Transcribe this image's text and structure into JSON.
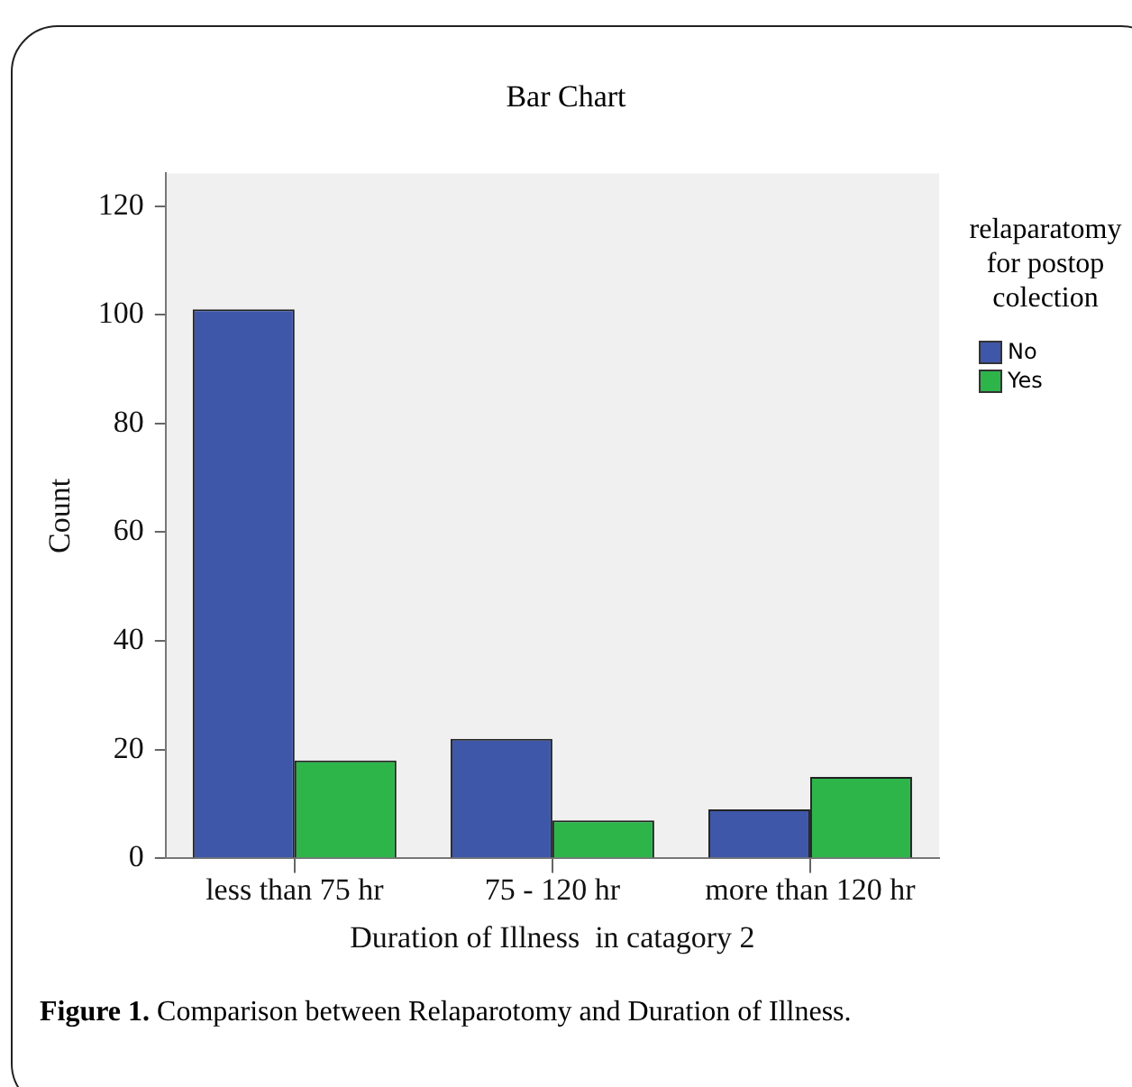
{
  "chart_data": {
    "type": "bar",
    "title": "Bar Chart",
    "xlabel": "Duration of Illness  in catagory 2",
    "ylabel": "Count",
    "legend_title": "relaparatomy for postop colection",
    "categories": [
      "less than 75 hr",
      "75 - 120 hr",
      "more than 120 hr"
    ],
    "series": [
      {
        "name": "No",
        "color": "#3f57a8",
        "values": [
          101,
          22,
          9
        ]
      },
      {
        "name": "Yes",
        "color": "#2db54a",
        "values": [
          18,
          7,
          15
        ]
      }
    ],
    "ylim": [
      0,
      126
    ],
    "yticks": [
      0,
      20,
      40,
      60,
      80,
      100,
      120
    ],
    "grid": false,
    "legend": "right",
    "annotations": [
      "Figure 1. Comparison between Relaparotomy and Duration of Illness."
    ]
  }
}
